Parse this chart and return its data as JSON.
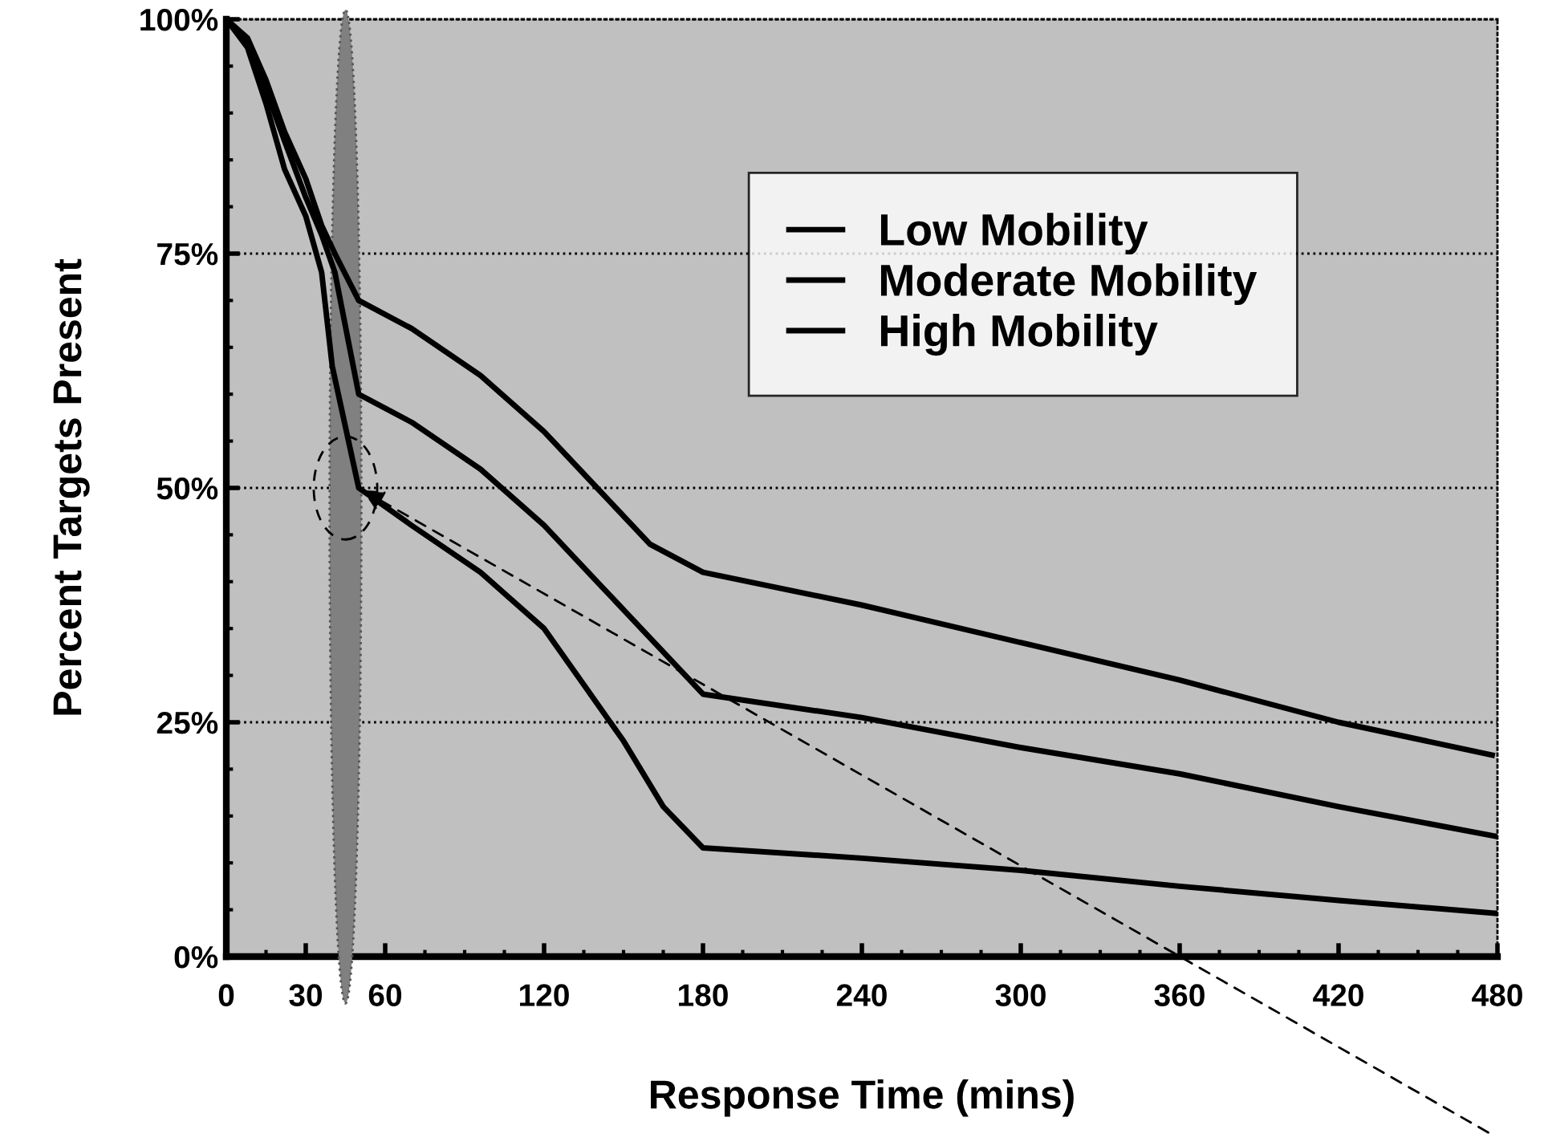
{
  "chart_data": {
    "type": "line",
    "xlabel": "Response Time (mins)",
    "ylabel": "Percent Targets Present",
    "series": [
      {
        "name": "Low Mobility",
        "color": "#000000",
        "x": [
          0,
          8,
          15,
          22,
          30,
          36,
          41,
          50,
          70,
          96,
          120,
          140,
          160,
          180,
          240,
          300,
          360,
          420,
          478
        ],
        "values": [
          100,
          98,
          93.5,
          88,
          83,
          78,
          75,
          70,
          67,
          62,
          56,
          50,
          44,
          41,
          37.5,
          33.5,
          29.5,
          25,
          21.5
        ]
      },
      {
        "name": "Moderate Mobility",
        "color": "#000000",
        "x": [
          0,
          8,
          15,
          22,
          30,
          36,
          41,
          50,
          70,
          96,
          120,
          140,
          160,
          180,
          240,
          300,
          360,
          420,
          480
        ],
        "values": [
          100,
          97.5,
          92.5,
          87,
          81,
          77,
          73,
          60,
          57,
          52,
          46,
          40,
          34,
          28,
          25.5,
          22.3,
          19.5,
          16,
          12.8
        ]
      },
      {
        "name": "High Mobility",
        "color": "#000000",
        "x": [
          0,
          8,
          15,
          22,
          30,
          36,
          40,
          50,
          70,
          96,
          120,
          135,
          150,
          165,
          180,
          240,
          300,
          360,
          420,
          480
        ],
        "values": [
          100,
          97,
          91,
          84,
          79,
          73,
          63,
          50,
          46,
          41,
          35,
          29,
          23,
          16,
          11.6,
          10.5,
          9.2,
          7.5,
          6,
          4.6
        ]
      }
    ],
    "xlim": [
      0,
      480
    ],
    "ylim": [
      0,
      100
    ],
    "xticks": [
      0,
      30,
      60,
      120,
      180,
      240,
      300,
      360,
      420,
      480
    ],
    "yticks": [
      {
        "value": 0,
        "label": "0%"
      },
      {
        "value": 25,
        "label": "25%"
      },
      {
        "value": 50,
        "label": "50%"
      },
      {
        "value": 75,
        "label": "75%"
      },
      {
        "value": 100,
        "label": "100%"
      }
    ],
    "grid": "y",
    "legend": "top right",
    "marker": "none",
    "line_style": "solid"
  }
}
